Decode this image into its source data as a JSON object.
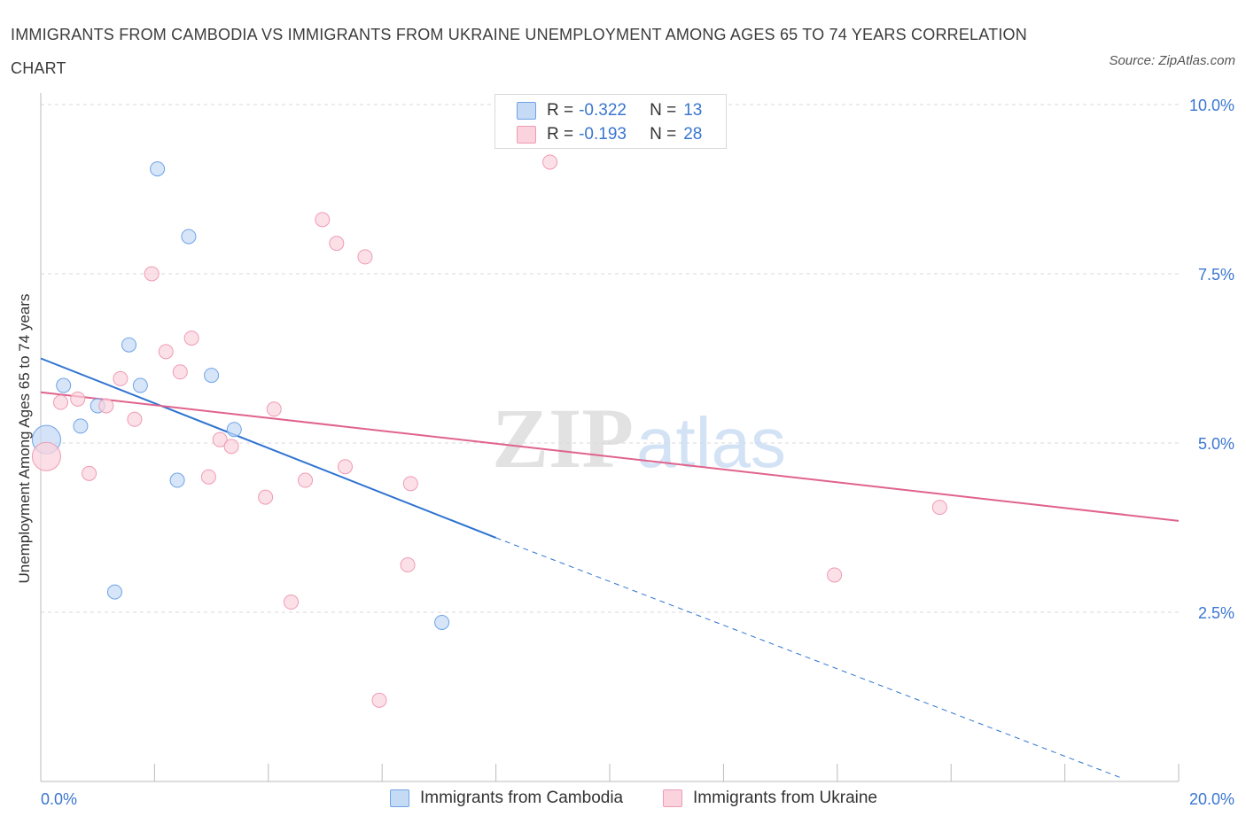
{
  "title": "IMMIGRANTS FROM CAMBODIA VS IMMIGRANTS FROM UKRAINE UNEMPLOYMENT AMONG AGES 65 TO 74 YEARS CORRELATION CHART",
  "source": "Source: ZipAtlas.com",
  "watermark": {
    "zip": "ZIP",
    "atlas": "atlas"
  },
  "legend": {
    "cambodia": {
      "r_label": "R =",
      "r_value": "-0.322",
      "n_label": "N =",
      "n_value": "13",
      "color": "#aecbf0"
    },
    "ukraine": {
      "r_label": "R =",
      "r_value": "-0.193",
      "n_label": "N =",
      "n_value": "28",
      "color": "#f7bccd"
    }
  },
  "bottom_legend": {
    "cambodia": "Immigrants from Cambodia",
    "ukraine": "Immigrants from Ukraine"
  },
  "chart_data": {
    "type": "scatter",
    "xlabel": "",
    "ylabel": "Unemployment Among Ages 65 to 74 years",
    "xlim": [
      0,
      20
    ],
    "ylim": [
      0,
      10
    ],
    "x_tick_labels": [
      "0.0%",
      "20.0%"
    ],
    "y_ticks": [
      2.5,
      5.0,
      7.5,
      10.0
    ],
    "y_tick_labels": [
      "2.5%",
      "5.0%",
      "7.5%",
      "10.0%"
    ],
    "series": [
      {
        "name": "Immigrants from Cambodia",
        "color": "#6fa3e6",
        "fill": "#c5daf5",
        "line_color": "#2f74d0",
        "points": [
          {
            "x": 0.1,
            "y": 5.05,
            "big": true
          },
          {
            "x": 0.4,
            "y": 5.85
          },
          {
            "x": 0.7,
            "y": 5.25
          },
          {
            "x": 1.0,
            "y": 5.55
          },
          {
            "x": 1.3,
            "y": 2.8
          },
          {
            "x": 1.55,
            "y": 6.45
          },
          {
            "x": 1.75,
            "y": 5.85
          },
          {
            "x": 2.05,
            "y": 9.05
          },
          {
            "x": 2.4,
            "y": 4.45
          },
          {
            "x": 2.6,
            "y": 8.05
          },
          {
            "x": 3.0,
            "y": 6.0
          },
          {
            "x": 3.4,
            "y": 5.2
          },
          {
            "x": 7.05,
            "y": 2.35
          }
        ],
        "trend": {
          "x0": 0.0,
          "y0": 6.25,
          "x1": 8.0,
          "y1": 3.6,
          "dash_to_x": 19.0,
          "dash_to_y": 0.05
        }
      },
      {
        "name": "Immigrants from Ukraine",
        "color": "#ee9bb4",
        "fill": "#fbd3de",
        "line_color": "#e0638b",
        "points": [
          {
            "x": 0.1,
            "y": 4.8,
            "big": true
          },
          {
            "x": 0.35,
            "y": 5.6
          },
          {
            "x": 0.65,
            "y": 5.65
          },
          {
            "x": 0.85,
            "y": 4.55
          },
          {
            "x": 1.15,
            "y": 5.55
          },
          {
            "x": 1.4,
            "y": 5.95
          },
          {
            "x": 1.65,
            "y": 5.35
          },
          {
            "x": 1.95,
            "y": 7.5
          },
          {
            "x": 2.2,
            "y": 6.35
          },
          {
            "x": 2.45,
            "y": 6.05
          },
          {
            "x": 2.65,
            "y": 6.55
          },
          {
            "x": 2.95,
            "y": 4.5
          },
          {
            "x": 3.15,
            "y": 5.05
          },
          {
            "x": 3.35,
            "y": 4.95
          },
          {
            "x": 3.95,
            "y": 4.2
          },
          {
            "x": 4.1,
            "y": 5.5
          },
          {
            "x": 4.4,
            "y": 2.65
          },
          {
            "x": 4.65,
            "y": 4.45
          },
          {
            "x": 4.95,
            "y": 8.3
          },
          {
            "x": 5.2,
            "y": 7.95
          },
          {
            "x": 5.35,
            "y": 4.65
          },
          {
            "x": 5.7,
            "y": 7.75
          },
          {
            "x": 5.95,
            "y": 1.2
          },
          {
            "x": 6.45,
            "y": 3.2
          },
          {
            "x": 6.5,
            "y": 4.4
          },
          {
            "x": 8.95,
            "y": 9.15
          },
          {
            "x": 13.95,
            "y": 3.05
          },
          {
            "x": 15.8,
            "y": 4.05
          }
        ],
        "trend": {
          "x0": 0.0,
          "y0": 5.75,
          "x1": 20.0,
          "y1": 3.85
        }
      }
    ]
  }
}
